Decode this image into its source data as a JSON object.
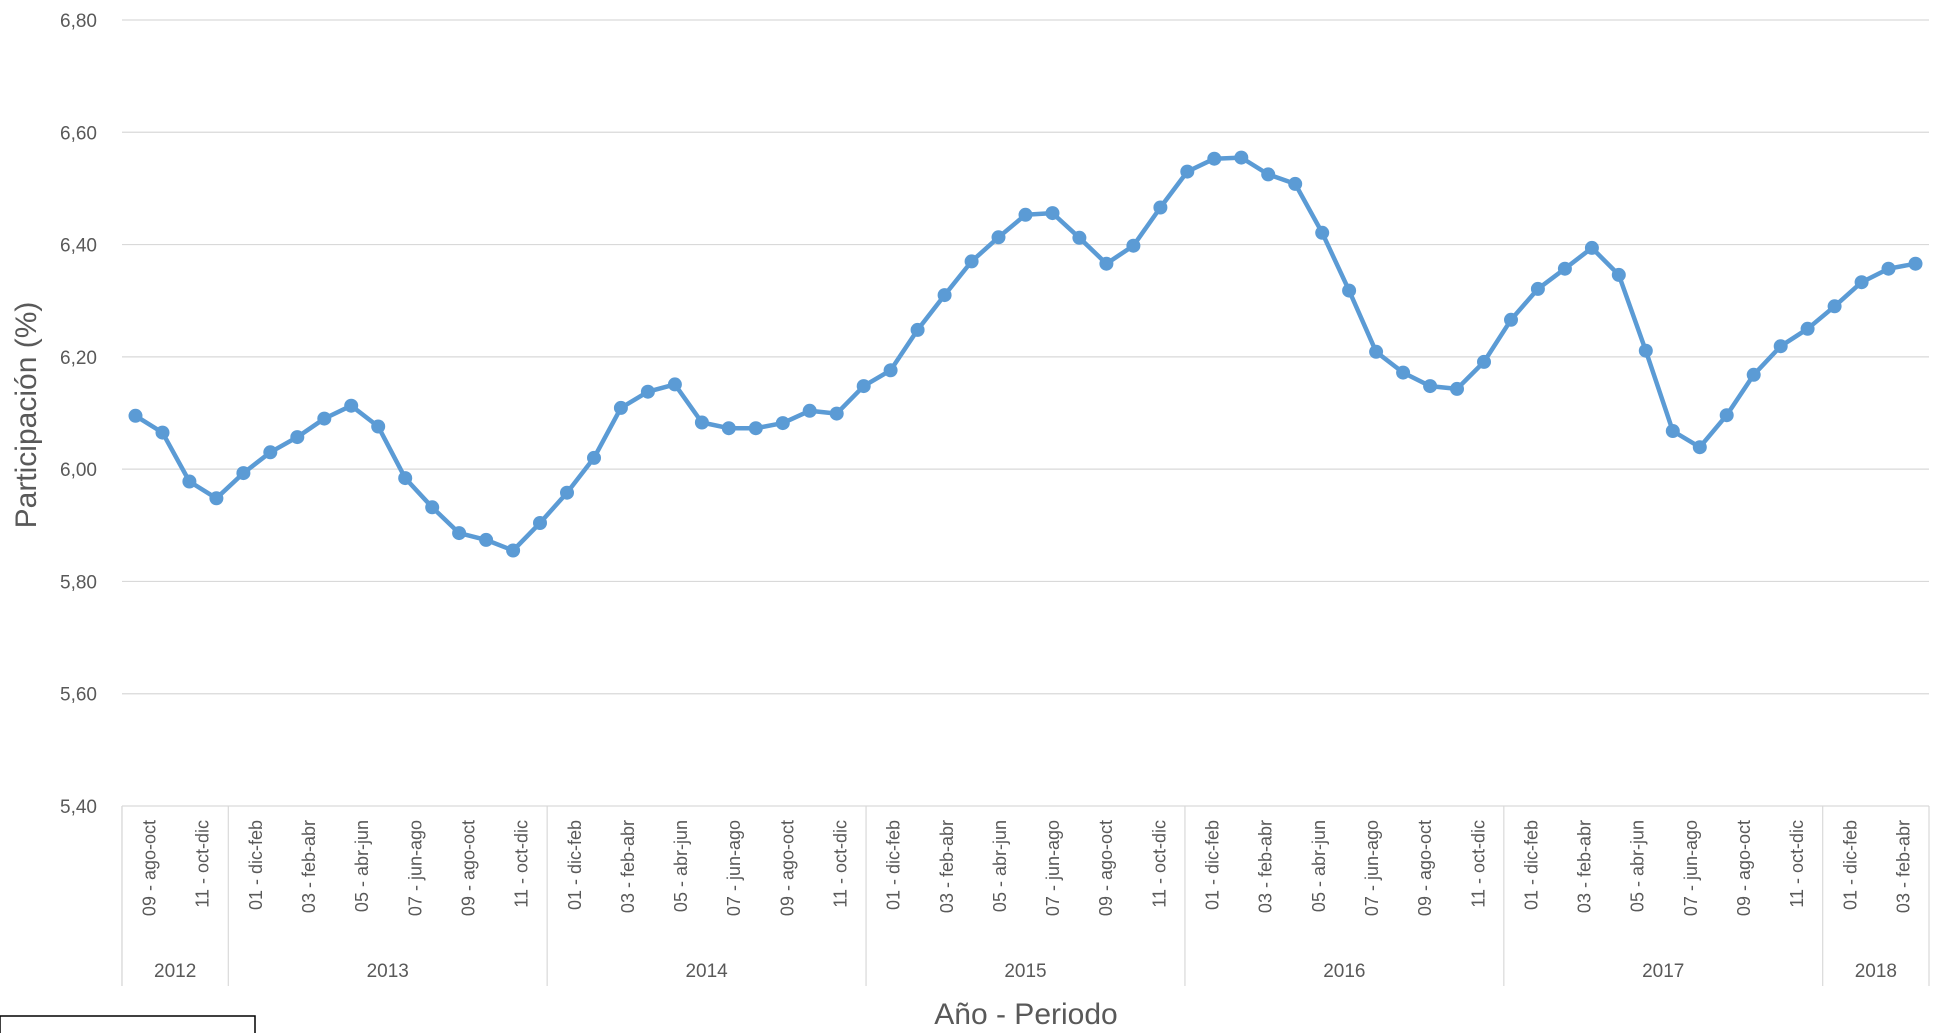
{
  "chart_data": {
    "type": "line",
    "ylabel": "Participación (%)",
    "xlabel": "Año - Periodo",
    "ylim": [
      5.4,
      6.8
    ],
    "y_ticks": [
      "5,40",
      "5,60",
      "5,80",
      "6,00",
      "6,20",
      "6,40",
      "6,60",
      "6,80"
    ],
    "grid": true,
    "legend": "none",
    "colors": {
      "series": "#5b9bd5",
      "grid": "#d9d9d9",
      "text": "#595959"
    },
    "year_groups": [
      {
        "label": "2012",
        "count": 2
      },
      {
        "label": "2013",
        "count": 6
      },
      {
        "label": "2014",
        "count": 6
      },
      {
        "label": "2015",
        "count": 6
      },
      {
        "label": "2016",
        "count": 6
      },
      {
        "label": "2017",
        "count": 6
      },
      {
        "label": "2018",
        "count": 2
      }
    ],
    "x_labels": [
      "09 - ago-oct",
      "11 - oct-dic",
      "01 - dic-feb",
      "03 - feb-abr",
      "05 - abr-jun",
      "07 - jun-ago",
      "09 - ago-oct",
      "11 - oct-dic",
      "01 - dic-feb",
      "03 - feb-abr",
      "05 - abr-jun",
      "07 - jun-ago",
      "09 - ago-oct",
      "11 - oct-dic",
      "01 - dic-feb",
      "03 - feb-abr",
      "05 - abr-jun",
      "07 - jun-ago",
      "09 - ago-oct",
      "11 - oct-dic",
      "01 - dic-feb",
      "03 - feb-abr",
      "05 - abr-jun",
      "07 - jun-ago",
      "09 - ago-oct",
      "11 - oct-dic",
      "01 - dic-feb",
      "03 - feb-abr",
      "05 - abr-jun",
      "07 - jun-ago",
      "09 - ago-oct",
      "11 - oct-dic",
      "01 - dic-feb",
      "03 - feb-abr"
    ],
    "series": [
      {
        "values": [
          6.095,
          6.065,
          5.978,
          5.948,
          5.993,
          6.03,
          6.057,
          6.09,
          6.113,
          6.076,
          5.984,
          5.932,
          5.886,
          5.874,
          5.855,
          5.904,
          5.958,
          6.02,
          6.109,
          6.138,
          6.151,
          6.083,
          6.073,
          6.073,
          6.082,
          6.104,
          6.099,
          6.148,
          6.176,
          6.248,
          6.31,
          6.37,
          6.413,
          6.453,
          6.456,
          6.412,
          6.366,
          6.398,
          6.466,
          6.53,
          6.553,
          6.555,
          6.525,
          6.508,
          6.421,
          6.318,
          6.209,
          6.172,
          6.148,
          6.143,
          6.191,
          6.266,
          6.321,
          6.357,
          6.394,
          6.346,
          6.211,
          6.068,
          6.039,
          6.096,
          6.168,
          6.219,
          6.25,
          6.29,
          6.333,
          6.357,
          6.366
        ]
      }
    ]
  },
  "footer": {
    "legend_fragment": ""
  }
}
